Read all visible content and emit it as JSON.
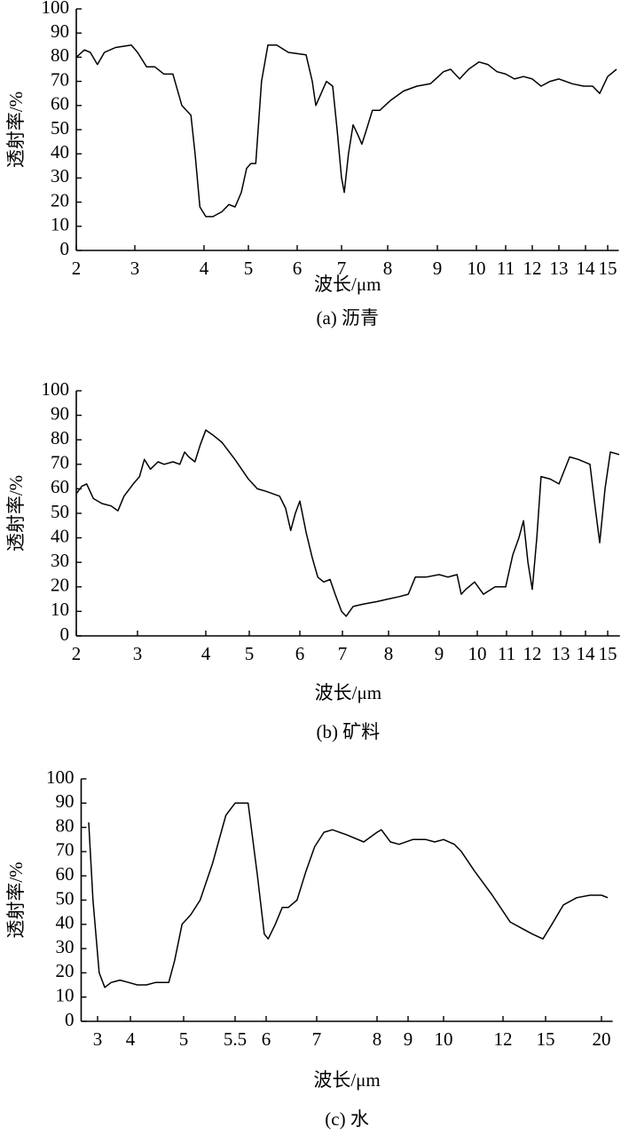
{
  "chart_data": [
    {
      "type": "line",
      "title": "(a) 沥青",
      "x_label": "波长/μm",
      "y_label": "透射率/%",
      "color": "#000000",
      "xlim": [
        2,
        15.5
      ],
      "xticks": [
        2,
        3,
        4,
        5,
        6,
        7,
        8,
        9,
        10,
        11,
        12,
        13,
        14,
        15
      ],
      "ylim": [
        0,
        100
      ],
      "yticks": [
        0,
        10,
        20,
        30,
        40,
        50,
        60,
        70,
        80,
        90,
        100
      ],
      "x": [
        2.0,
        2.14,
        2.24,
        2.36,
        2.48,
        2.67,
        2.94,
        3.04,
        3.17,
        3.29,
        3.42,
        3.55,
        3.68,
        3.81,
        3.87,
        3.94,
        4.04,
        4.2,
        4.4,
        4.56,
        4.7,
        4.84,
        4.96,
        5.05,
        5.15,
        5.27,
        5.4,
        5.58,
        5.82,
        6.2,
        6.34,
        6.42,
        6.54,
        6.66,
        6.8,
        6.9,
        7.0,
        7.06,
        7.15,
        7.25,
        7.35,
        7.44,
        7.54,
        7.67,
        7.83,
        8.05,
        8.32,
        8.59,
        8.86,
        9.16,
        9.34,
        9.57,
        9.8,
        10.09,
        10.39,
        10.7,
        11.0,
        11.33,
        11.67,
        12.0,
        12.33,
        12.67,
        13.0,
        13.5,
        13.93,
        14.32,
        14.64,
        15.0,
        15.4
      ],
      "values": [
        80,
        83,
        82,
        77,
        82,
        84,
        85,
        82,
        76,
        76,
        73,
        73,
        60,
        56,
        40,
        18,
        14,
        14,
        16,
        19,
        18,
        24,
        34,
        36,
        36,
        70,
        85,
        85,
        82,
        81,
        70,
        60,
        65,
        70,
        68,
        50,
        30,
        24,
        40,
        52,
        48,
        44,
        50,
        58,
        58,
        62,
        66,
        68,
        69,
        74,
        75,
        71,
        75,
        78,
        77,
        74,
        73,
        71,
        72,
        71,
        68,
        70,
        71,
        69,
        68,
        68,
        65,
        72,
        75
      ]
    },
    {
      "type": "line",
      "title": "(b) 矿料",
      "x_label": "波长/μm",
      "y_label": "透射率/%",
      "color": "#000000",
      "xlim": [
        2,
        15.55
      ],
      "xticks": [
        2,
        3,
        4,
        5,
        6,
        7,
        8,
        9,
        10,
        11,
        12,
        13,
        14,
        15
      ],
      "ylim": [
        0,
        100
      ],
      "yticks": [
        0,
        10,
        20,
        30,
        40,
        50,
        60,
        70,
        80,
        90,
        100
      ],
      "x": [
        2.0,
        2.09,
        2.17,
        2.28,
        2.42,
        2.57,
        2.68,
        2.78,
        2.93,
        3.03,
        3.1,
        3.19,
        3.3,
        3.39,
        3.52,
        3.62,
        3.69,
        3.75,
        3.84,
        3.92,
        4.0,
        4.16,
        4.37,
        4.67,
        4.98,
        5.16,
        5.33,
        5.6,
        5.72,
        5.82,
        5.91,
        6.0,
        6.15,
        6.29,
        6.42,
        6.56,
        6.71,
        6.83,
        6.98,
        7.08,
        7.23,
        7.46,
        7.75,
        7.98,
        8.21,
        8.39,
        8.53,
        8.74,
        9.0,
        9.23,
        9.47,
        9.58,
        9.7,
        9.93,
        10.21,
        10.61,
        10.97,
        11.24,
        11.48,
        11.66,
        11.83,
        12.0,
        12.16,
        12.31,
        12.63,
        12.94,
        13.36,
        13.71,
        14.2,
        14.4,
        14.64,
        14.88,
        15.12,
        15.52
      ],
      "values": [
        58,
        61,
        62,
        56,
        54,
        53,
        51,
        57,
        62,
        65,
        72,
        68,
        71,
        70,
        71,
        70,
        75,
        73,
        71,
        78,
        84,
        82,
        79,
        72,
        64,
        60,
        59,
        57,
        52,
        43,
        50,
        55,
        42,
        32,
        24,
        22,
        23,
        17,
        10,
        8,
        12,
        13,
        14,
        15,
        16,
        17,
        24,
        24,
        25,
        24,
        25,
        17,
        19,
        22,
        17,
        20,
        20,
        33,
        40,
        47,
        30,
        19,
        40,
        65,
        64,
        62,
        73,
        72,
        70,
        55,
        38,
        60,
        75,
        74
      ]
    },
    {
      "type": "line",
      "title": "(c) 水",
      "x_label": "波长/μm",
      "y_label": "透射率/%",
      "color": "#000000",
      "xlim": [
        2.5,
        21
      ],
      "xticks": [
        3,
        4,
        5,
        5.5,
        6,
        7,
        8,
        9,
        10,
        12,
        15,
        20
      ],
      "ylim": [
        0,
        100
      ],
      "yticks": [
        0,
        10,
        20,
        30,
        40,
        50,
        60,
        70,
        80,
        90,
        100
      ],
      "x": [
        2.73,
        2.86,
        3.05,
        3.22,
        3.41,
        3.68,
        3.95,
        4.13,
        4.3,
        4.47,
        4.63,
        4.72,
        4.83,
        4.97,
        5.07,
        5.16,
        5.28,
        5.41,
        5.5,
        5.71,
        5.86,
        5.97,
        6.04,
        6.18,
        6.32,
        6.44,
        6.61,
        6.79,
        6.96,
        7.12,
        7.26,
        7.49,
        7.78,
        8.0,
        8.14,
        8.43,
        8.71,
        9.13,
        9.5,
        9.75,
        10.0,
        10.36,
        10.6,
        11.04,
        11.64,
        12.5,
        13.44,
        14.06,
        14.81,
        15.56,
        16.59,
        17.78,
        18.97,
        20.0,
        20.56
      ],
      "values": [
        82,
        50,
        20,
        14,
        16,
        17,
        16,
        15,
        15,
        16,
        16,
        16,
        25,
        40,
        44,
        50,
        65,
        85,
        90,
        90,
        60,
        36,
        34,
        40,
        47,
        47,
        50,
        62,
        72,
        78,
        79,
        77,
        74,
        78,
        79,
        74,
        73,
        75,
        75,
        74,
        75,
        73,
        70,
        62,
        52,
        41,
        38,
        36,
        34,
        40,
        48,
        51,
        52,
        52,
        51
      ]
    }
  ]
}
